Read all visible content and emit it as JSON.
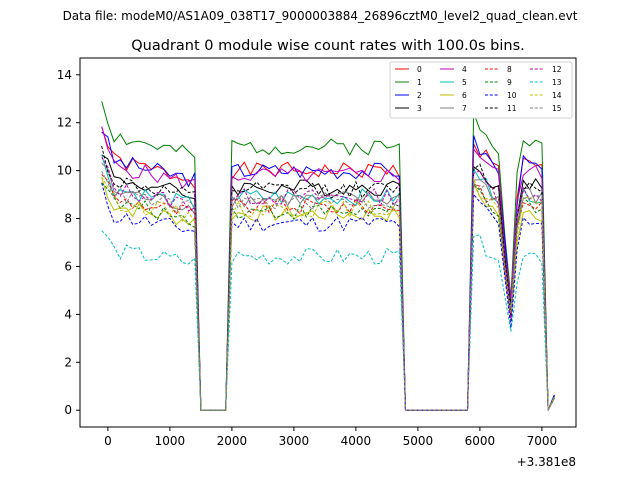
{
  "chart_data": {
    "type": "line",
    "suptitle": "Data file: modeM0/AS1A09_038T17_9000003884_26896cztM0_level2_quad_clean.evt",
    "title": "Quadrant 0 module wise count rates with 100.0s bins.",
    "xlabel": "",
    "ylabel": "",
    "x_offset_label": "+3.381e8",
    "xlim": [
      -450,
      7550
    ],
    "ylim": [
      -0.7,
      14.7
    ],
    "xticks": [
      0,
      1000,
      2000,
      3000,
      4000,
      5000,
      6000,
      7000
    ],
    "yticks": [
      0,
      2,
      4,
      6,
      8,
      10,
      12,
      14
    ],
    "grid": false,
    "legend_position": "top-right",
    "segments": [
      {
        "t0": -100,
        "t1": 1400
      },
      {
        "t0": 2000,
        "t1": 4700
      },
      {
        "t0": 5900,
        "t1": 6400
      },
      {
        "t0": 6600,
        "t1": 7000
      }
    ],
    "series": [
      {
        "name": "0",
        "color": "#ff0000",
        "dash": "solid",
        "level": 10.0
      },
      {
        "name": "1",
        "color": "#008000",
        "dash": "solid",
        "level": 11.0
      },
      {
        "name": "2",
        "color": "#0000ff",
        "dash": "solid",
        "level": 10.0
      },
      {
        "name": "3",
        "color": "#000000",
        "dash": "solid",
        "level": 9.3
      },
      {
        "name": "4",
        "color": "#bf00bf",
        "dash": "solid",
        "level": 9.8
      },
      {
        "name": "5",
        "color": "#00bfbf",
        "dash": "solid",
        "level": 8.9
      },
      {
        "name": "6",
        "color": "#bfbf00",
        "dash": "solid",
        "level": 8.2
      },
      {
        "name": "7",
        "color": "#808080",
        "dash": "solid",
        "level": 8.8
      },
      {
        "name": "8",
        "color": "#ff0000",
        "dash": "dashed",
        "level": 8.5
      },
      {
        "name": "9",
        "color": "#008000",
        "dash": "dashed",
        "level": 8.3
      },
      {
        "name": "10",
        "color": "#0000ff",
        "dash": "dashed",
        "level": 7.8
      },
      {
        "name": "11",
        "color": "#000000",
        "dash": "dashed",
        "level": 9.2
      },
      {
        "name": "12",
        "color": "#bf00bf",
        "dash": "dashed",
        "level": 8.9
      },
      {
        "name": "13",
        "color": "#00bfbf",
        "dash": "dashed",
        "level": 6.4
      },
      {
        "name": "14",
        "color": "#bfbf00",
        "dash": "dashed",
        "level": 8.4
      },
      {
        "name": "15",
        "color": "#808080",
        "dash": "dashed",
        "level": 8.7
      }
    ]
  }
}
